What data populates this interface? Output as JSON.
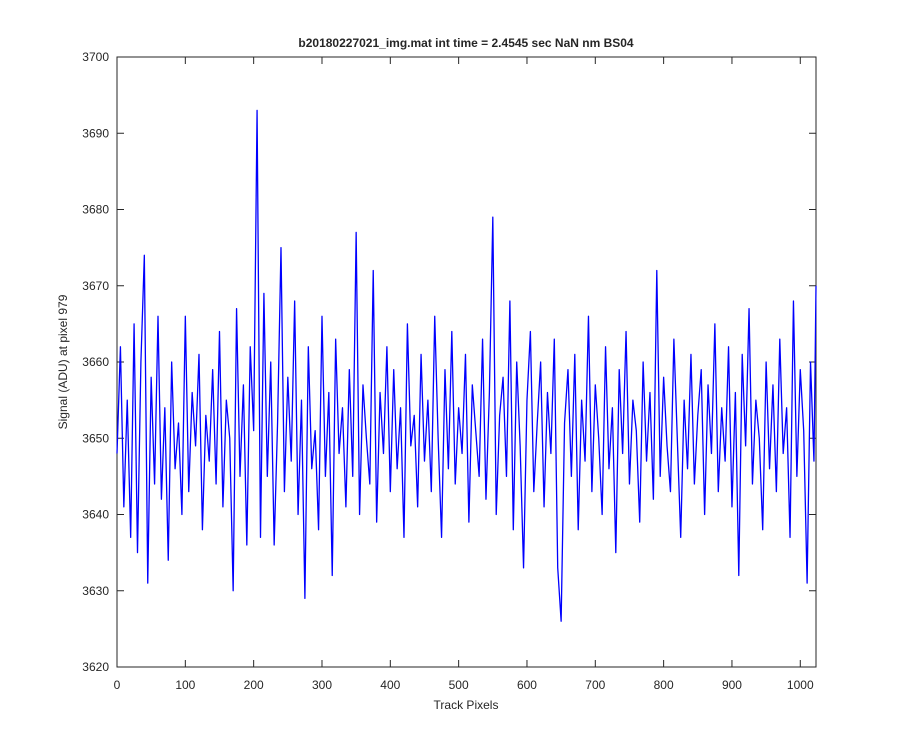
{
  "chart_data": {
    "type": "line",
    "title": "b20180227021_img.mat int time = 2.4545 sec  NaN nm BS04",
    "x_label": "Track Pixels",
    "y_label": "Signal (ADU) at pixel 979",
    "xlim": [
      0,
      1023
    ],
    "ylim": [
      3620,
      3700
    ],
    "xticks": [
      0,
      100,
      200,
      300,
      400,
      500,
      600,
      700,
      800,
      900,
      1000
    ],
    "yticks": [
      3620,
      3630,
      3640,
      3650,
      3660,
      3670,
      3680,
      3690,
      3700
    ],
    "grid": false,
    "x": [
      0,
      5,
      10,
      15,
      20,
      25,
      30,
      35,
      40,
      45,
      50,
      55,
      60,
      65,
      70,
      75,
      80,
      85,
      90,
      95,
      100,
      105,
      110,
      115,
      120,
      125,
      130,
      135,
      140,
      145,
      150,
      155,
      160,
      165,
      170,
      175,
      180,
      185,
      190,
      195,
      200,
      205,
      210,
      215,
      220,
      225,
      230,
      235,
      240,
      245,
      250,
      255,
      260,
      265,
      270,
      275,
      280,
      285,
      290,
      295,
      300,
      305,
      310,
      315,
      320,
      325,
      330,
      335,
      340,
      345,
      350,
      355,
      360,
      365,
      370,
      375,
      380,
      385,
      390,
      395,
      400,
      405,
      410,
      415,
      420,
      425,
      430,
      435,
      440,
      445,
      450,
      455,
      460,
      465,
      470,
      475,
      480,
      485,
      490,
      495,
      500,
      505,
      510,
      515,
      520,
      525,
      530,
      535,
      540,
      545,
      550,
      555,
      560,
      565,
      570,
      575,
      580,
      585,
      590,
      595,
      600,
      605,
      610,
      615,
      620,
      625,
      630,
      635,
      640,
      645,
      650,
      655,
      660,
      665,
      670,
      675,
      680,
      685,
      690,
      695,
      700,
      705,
      710,
      715,
      720,
      725,
      730,
      735,
      740,
      745,
      750,
      755,
      760,
      765,
      770,
      775,
      780,
      785,
      790,
      795,
      800,
      805,
      810,
      815,
      820,
      825,
      830,
      835,
      840,
      845,
      850,
      855,
      860,
      865,
      870,
      875,
      880,
      885,
      890,
      895,
      900,
      905,
      910,
      915,
      920,
      925,
      930,
      935,
      940,
      945,
      950,
      955,
      960,
      965,
      970,
      975,
      980,
      985,
      990,
      995,
      1000,
      1005,
      1010,
      1015,
      1020,
      1023
    ],
    "series": [
      {
        "color": "#0000ff",
        "values": [
          3648,
          3662,
          3641,
          3655,
          3637,
          3665,
          3635,
          3660,
          3674,
          3631,
          3658,
          3644,
          3666,
          3642,
          3654,
          3634,
          3660,
          3646,
          3652,
          3640,
          3666,
          3643,
          3656,
          3649,
          3661,
          3638,
          3653,
          3647,
          3659,
          3644,
          3664,
          3641,
          3655,
          3650,
          3630,
          3667,
          3645,
          3657,
          3636,
          3662,
          3651,
          3693,
          3637,
          3669,
          3645,
          3660,
          3636,
          3652,
          3675,
          3643,
          3658,
          3647,
          3668,
          3640,
          3655,
          3629,
          3662,
          3646,
          3651,
          3638,
          3666,
          3645,
          3656,
          3632,
          3663,
          3648,
          3654,
          3641,
          3659,
          3645,
          3677,
          3640,
          3657,
          3650,
          3644,
          3672,
          3639,
          3656,
          3648,
          3662,
          3643,
          3659,
          3646,
          3654,
          3637,
          3665,
          3649,
          3653,
          3641,
          3661,
          3647,
          3655,
          3643,
          3666,
          3650,
          3637,
          3659,
          3646,
          3664,
          3644,
          3654,
          3648,
          3661,
          3639,
          3657,
          3651,
          3645,
          3663,
          3642,
          3656,
          3679,
          3640,
          3653,
          3658,
          3645,
          3668,
          3638,
          3660,
          3649,
          3633,
          3655,
          3664,
          3643,
          3652,
          3660,
          3641,
          3656,
          3648,
          3663,
          3633,
          3626,
          3652,
          3659,
          3645,
          3661,
          3638,
          3655,
          3647,
          3666,
          3643,
          3657,
          3650,
          3640,
          3662,
          3646,
          3654,
          3635,
          3659,
          3648,
          3664,
          3644,
          3655,
          3651,
          3639,
          3660,
          3647,
          3656,
          3642,
          3672,
          3645,
          3658,
          3649,
          3643,
          3663,
          3650,
          3637,
          3655,
          3646,
          3661,
          3644,
          3653,
          3659,
          3640,
          3657,
          3648,
          3665,
          3643,
          3654,
          3647,
          3662,
          3641,
          3656,
          3632,
          3661,
          3649,
          3667,
          3644,
          3655,
          3650,
          3638,
          3660,
          3646,
          3657,
          3643,
          3663,
          3648,
          3654,
          3637,
          3668,
          3645,
          3659,
          3651,
          3631,
          3660,
          3647,
          3670
        ]
      }
    ]
  }
}
